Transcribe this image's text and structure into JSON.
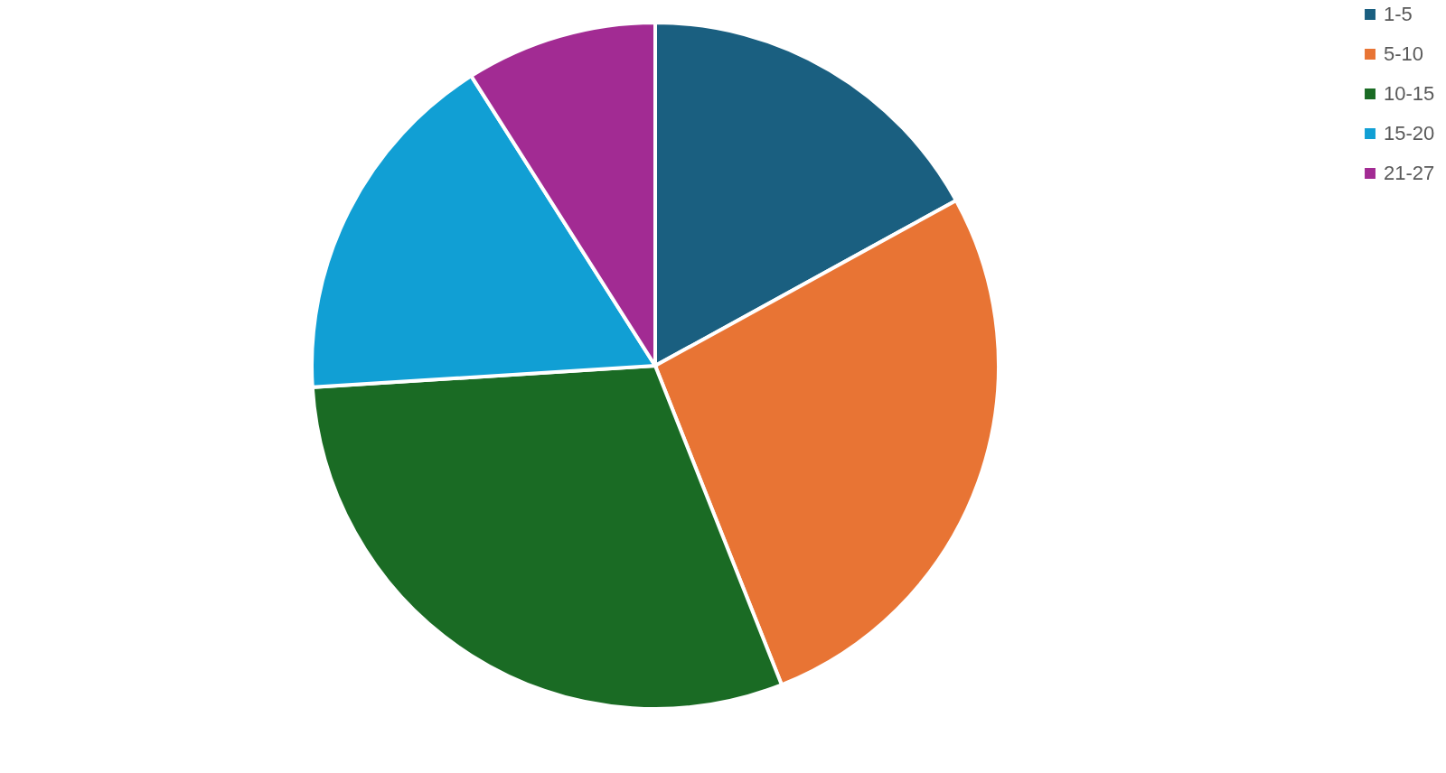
{
  "chart_data": {
    "type": "pie",
    "categories": [
      "1-5",
      "5-10",
      "10-15",
      "15-20",
      "21-27"
    ],
    "values": [
      17,
      27,
      30,
      17,
      9
    ],
    "colors": [
      "#1a5f80",
      "#e87434",
      "#1a6b24",
      "#119fd4",
      "#a22b93"
    ],
    "legend": "right"
  }
}
